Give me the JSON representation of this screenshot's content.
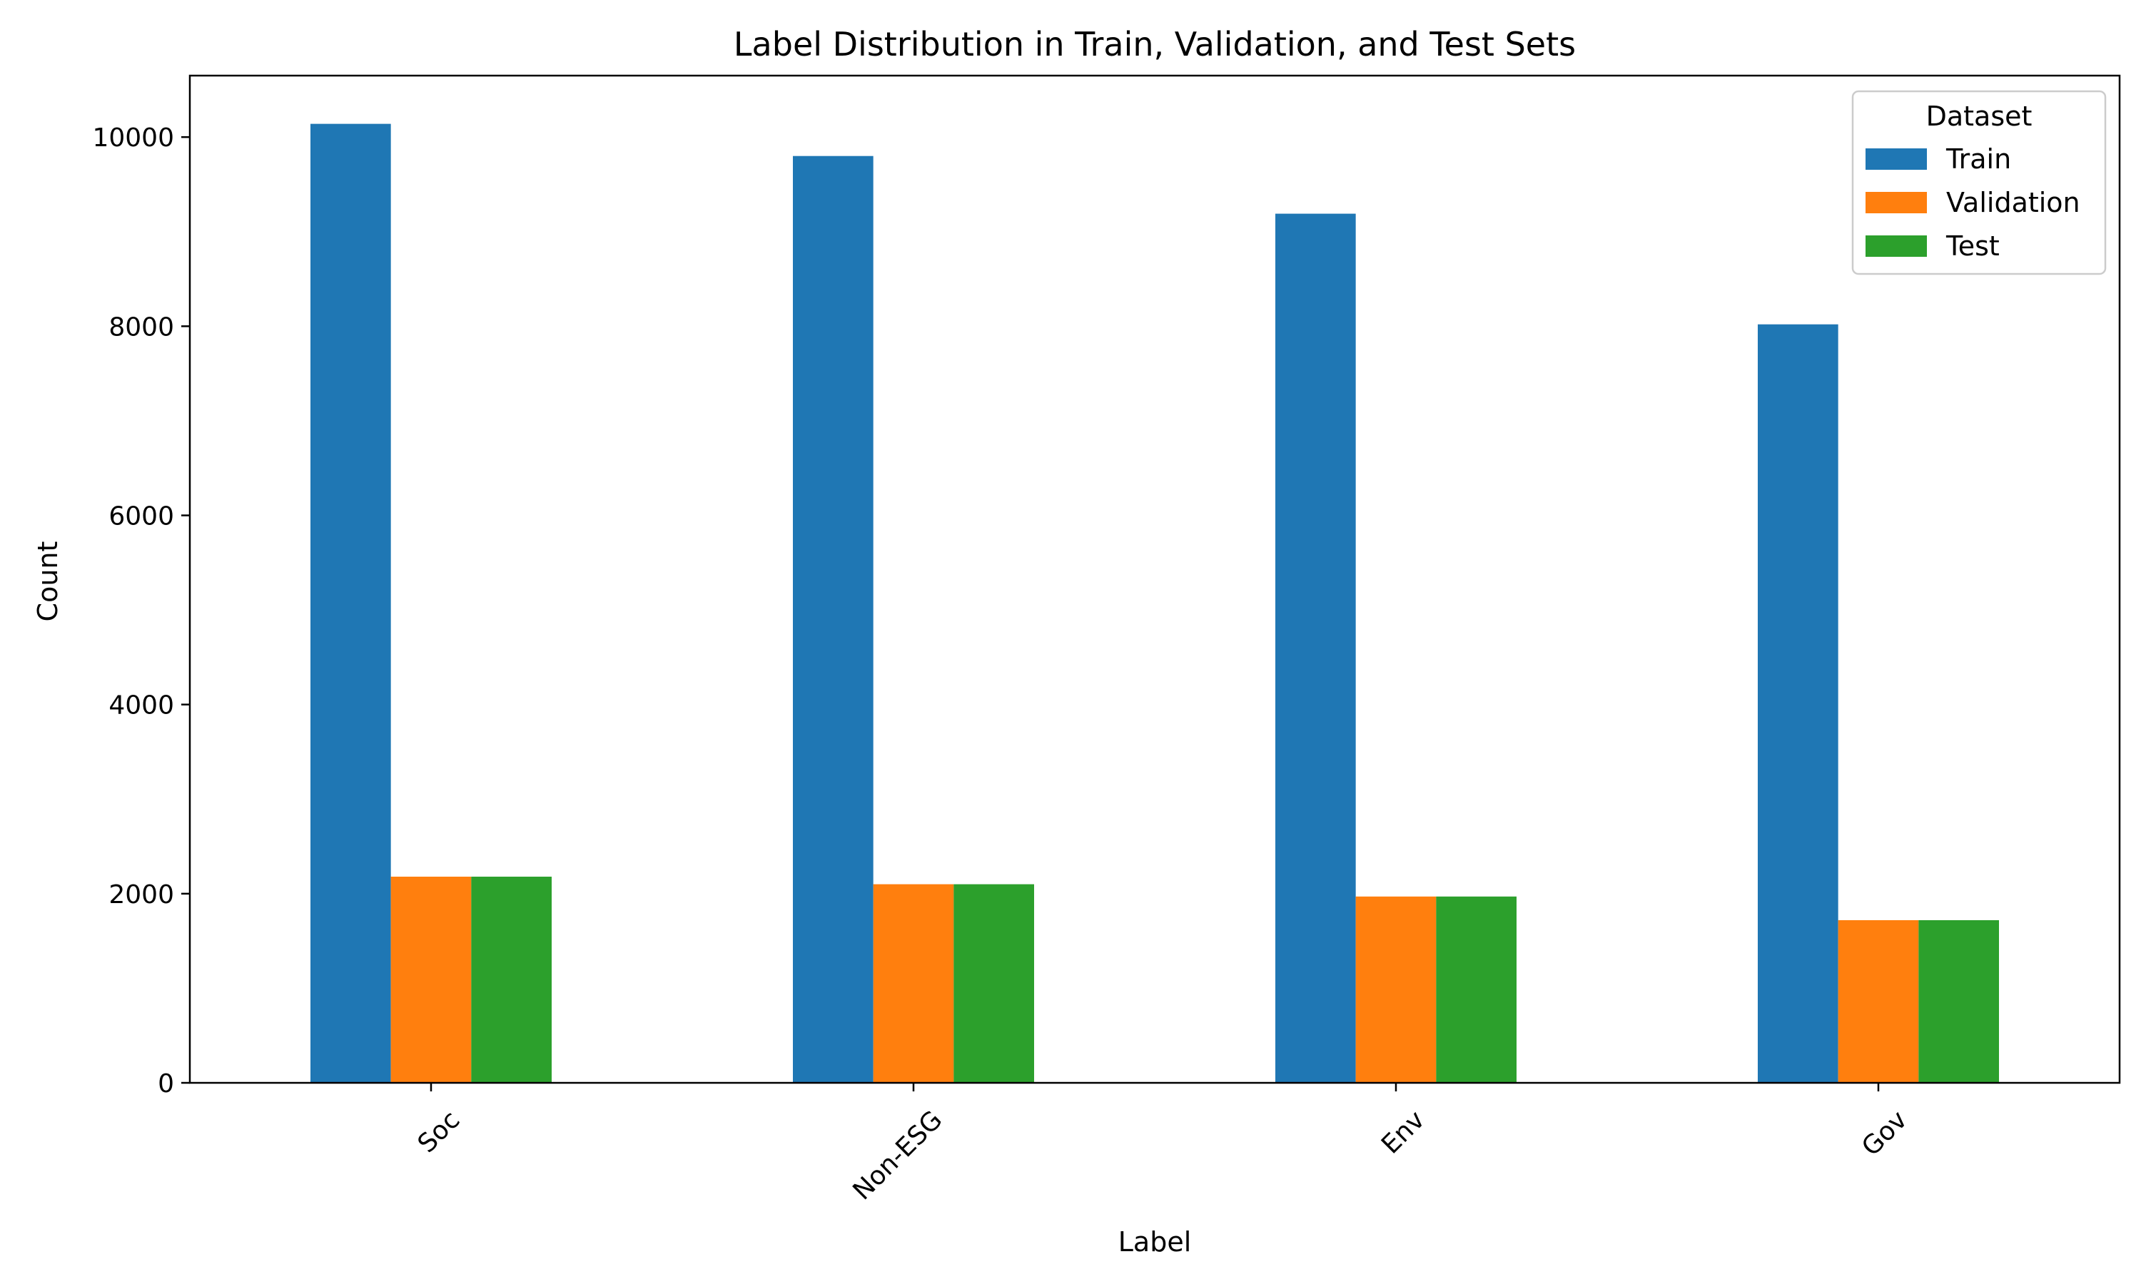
{
  "chart_data": {
    "type": "bar",
    "title": "Label Distribution in Train, Validation, and Test Sets",
    "xlabel": "Label",
    "ylabel": "Count",
    "categories": [
      "Soc",
      "Non-ESG",
      "Env",
      "Gov"
    ],
    "series": [
      {
        "name": "Train",
        "color": "#1f77b4",
        "values": [
          10140,
          9800,
          9190,
          8020
        ]
      },
      {
        "name": "Validation",
        "color": "#ff7f0e",
        "values": [
          2180,
          2100,
          1970,
          1720
        ]
      },
      {
        "name": "Test",
        "color": "#2ca02c",
        "values": [
          2180,
          2100,
          1970,
          1720
        ]
      }
    ],
    "ylim": [
      0,
      10650
    ],
    "yticks": [
      0,
      2000,
      4000,
      6000,
      8000,
      10000
    ],
    "ytick_labels": [
      "0",
      "2000",
      "4000",
      "6000",
      "8000",
      "10000"
    ],
    "xtick_rotation_deg": 45,
    "legend": {
      "title": "Dataset",
      "position": "top-right"
    },
    "grid": false
  }
}
